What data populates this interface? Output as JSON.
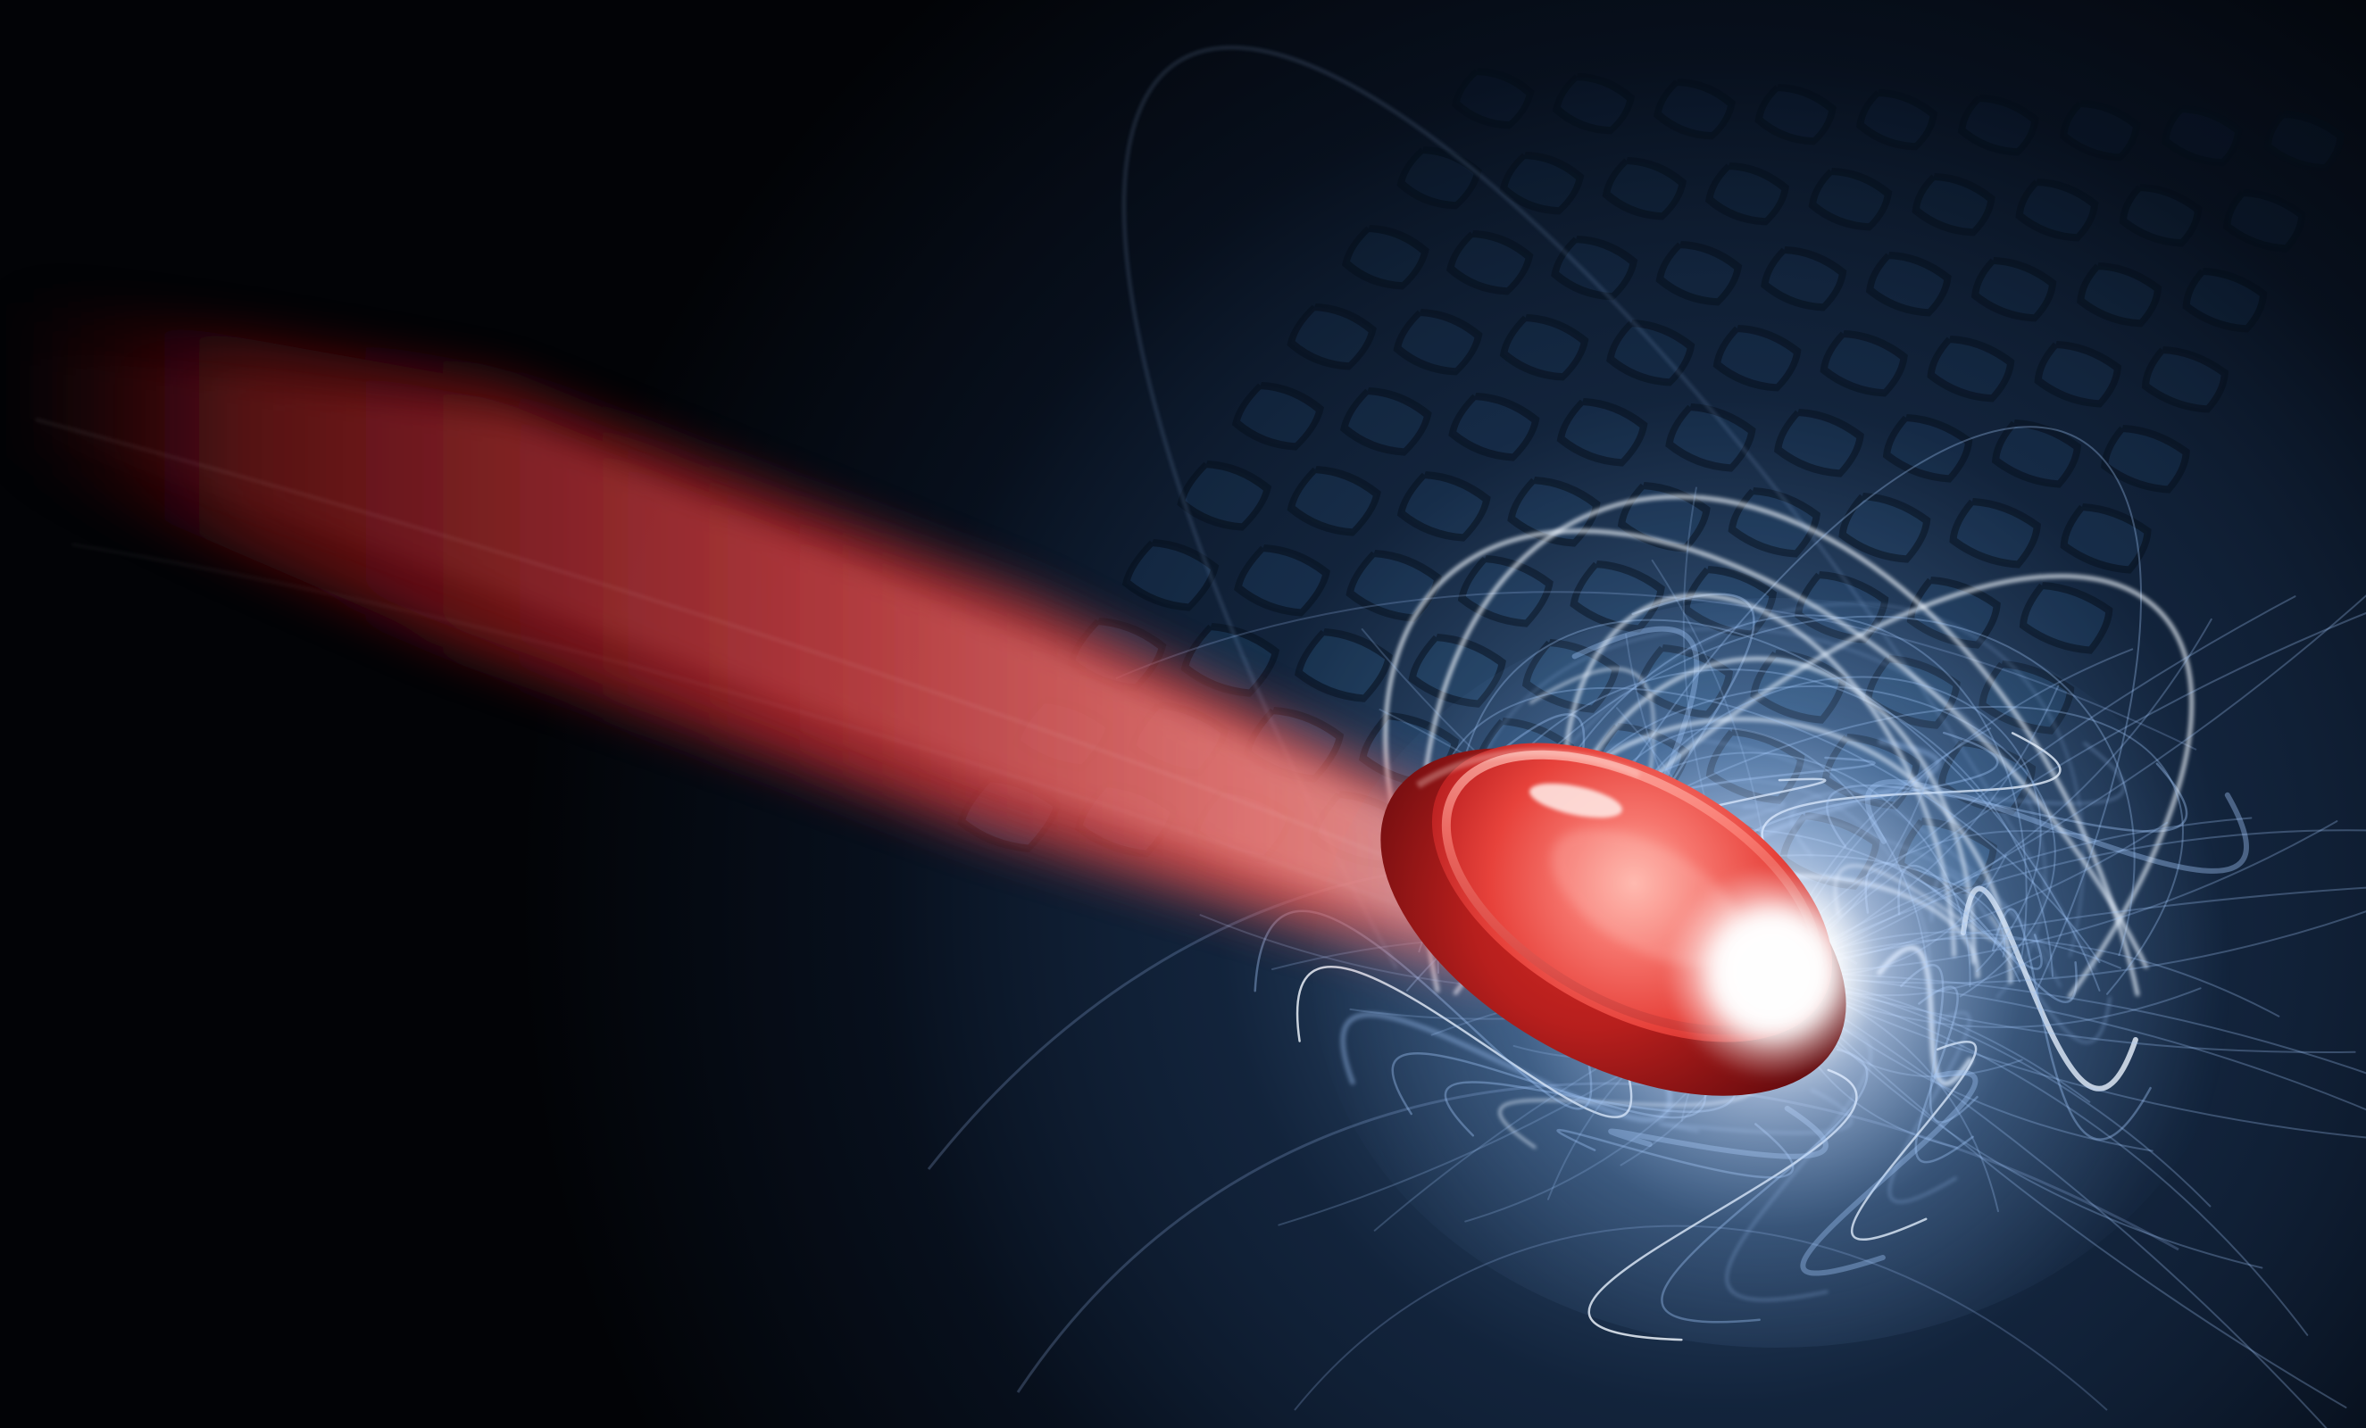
{
  "scene": {
    "subject": "red-puck",
    "colors": {
      "background": "#020306",
      "grid_blue": "#1d3f66",
      "glow_white": "#eef6ff",
      "energy_blue": "#9cc6ff",
      "puck_red": "#e5392f",
      "puck_dark": "#8e0e10",
      "trail_red": "#d84a43"
    }
  }
}
